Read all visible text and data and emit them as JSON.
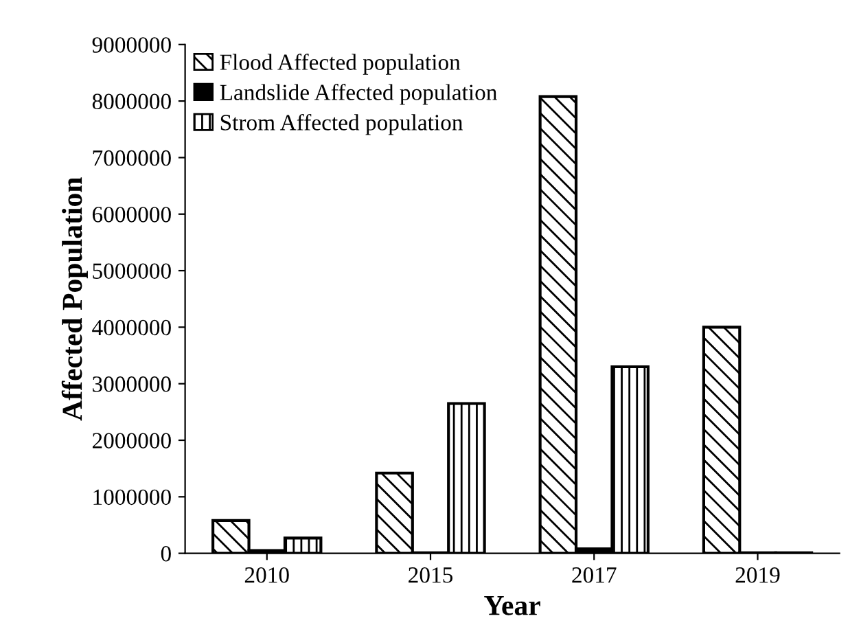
{
  "chart_data": {
    "type": "bar",
    "xlabel": "Year",
    "ylabel": "Affected Population",
    "categories": [
      "2010",
      "2015",
      "2017",
      "2019"
    ],
    "series": [
      {
        "name": "Flood Affected population",
        "color": "#000000",
        "values": [
          580000,
          1420000,
          8080000,
          4000000
        ]
      },
      {
        "name": "Landslide Affected population",
        "color": "#000000",
        "values": [
          50000,
          10000,
          80000,
          10000
        ]
      },
      {
        "name": "Strom Affected population",
        "color": "#000000",
        "values": [
          270000,
          2650000,
          3300000,
          10000
        ]
      }
    ],
    "ylim": [
      0,
      9000000
    ],
    "yticks": [
      0,
      1000000,
      2000000,
      3000000,
      4000000,
      5000000,
      6000000,
      7000000,
      8000000,
      9000000
    ],
    "grid": false,
    "legend": "top left"
  }
}
